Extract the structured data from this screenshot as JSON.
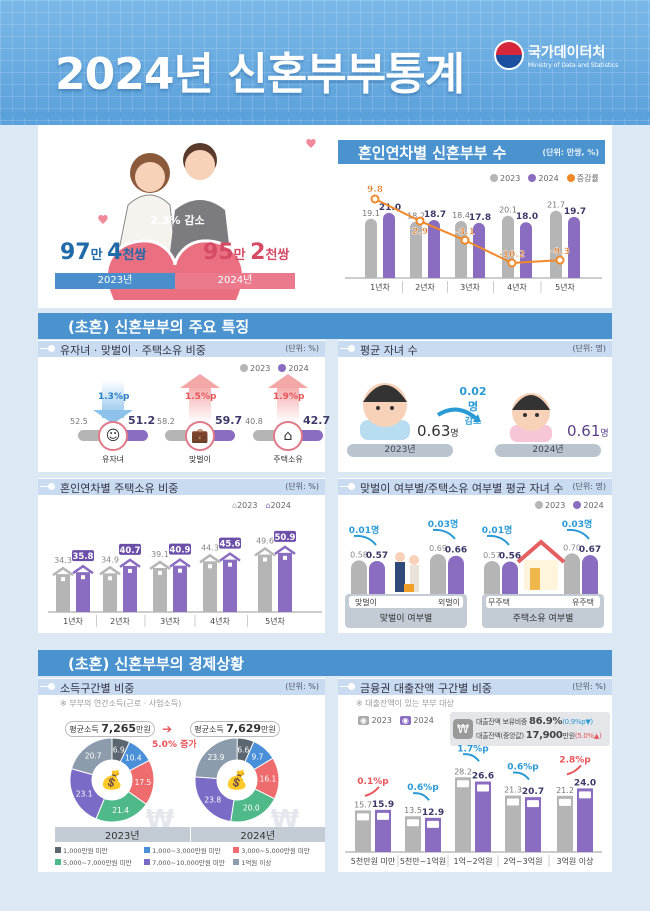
{
  "header": {
    "title": "2024년 신혼부부통계",
    "logo_ko": "국가데이터처",
    "logo_en": "Ministry of Data and Statistics"
  },
  "summary": {
    "change": "2.3% 감소",
    "y2023": {
      "n1": "97",
      "u1": "만 ",
      "n2": "4",
      "u2": "천쌍",
      "label": "2023년"
    },
    "y2024": {
      "n1": "95",
      "u1": "만 ",
      "n2": "2",
      "u2": "천쌍",
      "label": "2024년"
    }
  },
  "section1": {
    "title": "(초혼) 신혼부부의 주요 특징"
  },
  "section2": {
    "title": "(초혼) 신혼부부의 경제상황"
  },
  "colors": {
    "y2023": "#b5b5b5",
    "y2024": "#8a6cc0",
    "rate": "#f0892a",
    "header": "#4a93cf",
    "increase": "#e8555a",
    "decrease": "#2a9ad6"
  },
  "features": {
    "title": "유자녀 · 맞벌이 · 주택소유 비중",
    "unit": "(단위: %)",
    "legend": [
      "2023",
      "2024"
    ],
    "items": [
      {
        "label": "유자녀",
        "v2023": "52.5",
        "v2024": "51.2",
        "change": "1.3%p",
        "direction": "down",
        "icon": "baby-icon"
      },
      {
        "label": "맞벌이",
        "v2023": "58.2",
        "v2024": "59.7",
        "change": "1.5%p",
        "direction": "up",
        "icon": "briefcase-icon"
      },
      {
        "label": "주택소유",
        "v2023": "40.8",
        "v2024": "42.7",
        "change": "1.9%p",
        "direction": "up",
        "icon": "house-icon"
      }
    ]
  },
  "avg_children": {
    "title": "평균 자녀 수",
    "unit": "(단위: 명)",
    "v2023": "0.63",
    "v2024": "0.61",
    "suffix": "명",
    "change": "0.02명",
    "change_label": "감소",
    "label2023": "2023년",
    "label2024": "2024년"
  },
  "chart_data": [
    {
      "type": "bar",
      "title": "혼인연차별 신혼부부 수",
      "unit": "(단위: 만쌍, %)",
      "categories": [
        "1년차",
        "2년차",
        "3년차",
        "4년차",
        "5년차"
      ],
      "series": [
        {
          "name": "2023",
          "values": [
            19.1,
            18.2,
            18.4,
            20.1,
            21.7
          ]
        },
        {
          "name": "2024",
          "values": [
            21.0,
            18.7,
            17.8,
            18.0,
            19.7
          ]
        },
        {
          "name": "증감률",
          "type": "line",
          "values": [
            9.8,
            2.9,
            -3.1,
            -10.2,
            -9.3
          ]
        }
      ],
      "legend": "top-right"
    },
    {
      "type": "bar",
      "title": "혼인연차별 주택소유 비중",
      "unit": "(단위: %)",
      "categories": [
        "1년차",
        "2년차",
        "3년차",
        "4년차",
        "5년차"
      ],
      "series": [
        {
          "name": "2023",
          "values": [
            34.3,
            34.9,
            39.1,
            44.3,
            49.6
          ]
        },
        {
          "name": "2024",
          "values": [
            35.8,
            40.7,
            40.9,
            45.6,
            50.9
          ]
        }
      ],
      "legend": "top-right"
    },
    {
      "type": "bar",
      "title": "맞벌이 여부별/주택소유 여부별 평균 자녀 수",
      "unit": "(단위: 명)",
      "groups": [
        {
          "label": "맞벌이 여부별",
          "categories": [
            "맞벌이",
            "외벌이"
          ]
        },
        {
          "label": "주택소유 여부별",
          "categories": [
            "무주택",
            "유주택"
          ]
        }
      ],
      "categories": [
        "맞벌이",
        "외벌이",
        "무주택",
        "유주택"
      ],
      "series": [
        {
          "name": "2023",
          "values": [
            0.58,
            0.69,
            0.57,
            0.7
          ]
        },
        {
          "name": "2024",
          "values": [
            0.57,
            0.66,
            0.56,
            0.67
          ]
        }
      ],
      "changes": [
        "0.01명",
        "0.03명",
        "0.01명",
        "0.03명"
      ],
      "legend": "top-right"
    },
    {
      "type": "pie",
      "title": "소득구간별 비중",
      "unit": "(단위: %)",
      "note": "※ 부부의 연간소득(근로 · 사업소득)",
      "categories": [
        "1,000만원 미만",
        "1,000~3,000만원 미만",
        "3,000~5,000만원 미만",
        "5,000~7,000만원 미만",
        "7,000~10,000만원 미만",
        "1억원 이상"
      ],
      "colors": [
        "#5b6670",
        "#4a90d9",
        "#ee6b6e",
        "#4fb98a",
        "#7a6bc6",
        "#8c9cac"
      ],
      "series": [
        {
          "name": "2023년",
          "avg_label": "평균소득",
          "avg": "7,265",
          "avg_unit": "만원",
          "values": [
            6.9,
            10.4,
            17.5,
            21.4,
            23.1,
            20.7
          ]
        },
        {
          "name": "2024년",
          "avg_label": "평균소득",
          "avg": "7,629",
          "avg_unit": "만원",
          "values": [
            6.6,
            9.7,
            16.1,
            20.0,
            23.8,
            23.9
          ]
        }
      ],
      "change": "5.0% 증가",
      "legend": "bottom"
    },
    {
      "type": "bar",
      "title": "금융권 대출잔액 구간별 비중",
      "unit": "(단위: %)",
      "note": "※ 대출잔액이 있는 부부 대상",
      "categories": [
        "5천만원 미만",
        "5천만~1억원",
        "1억~2억원",
        "2억~3억원",
        "3억원 이상"
      ],
      "series": [
        {
          "name": "2023",
          "values": [
            15.7,
            13.5,
            28.2,
            21.3,
            21.2
          ]
        },
        {
          "name": "2024",
          "values": [
            15.9,
            12.9,
            26.6,
            20.7,
            24.0
          ]
        }
      ],
      "changes": [
        {
          "value": "0.1%p",
          "direction": "up"
        },
        {
          "value": "0.6%p",
          "direction": "down"
        },
        {
          "value": "1.7%p",
          "direction": "down"
        },
        {
          "value": "0.6%p",
          "direction": "down"
        },
        {
          "value": "2.8%p",
          "direction": "up"
        }
      ],
      "info": {
        "share_label": "대출잔액 보유비중",
        "share": "86.9%",
        "share_change": "(0.9%p▼)",
        "median_label": "대출잔액(중앙값)",
        "median": "17,900",
        "median_unit": "만원",
        "median_change": "(5.0%▲)"
      },
      "legend": "top-left"
    }
  ]
}
